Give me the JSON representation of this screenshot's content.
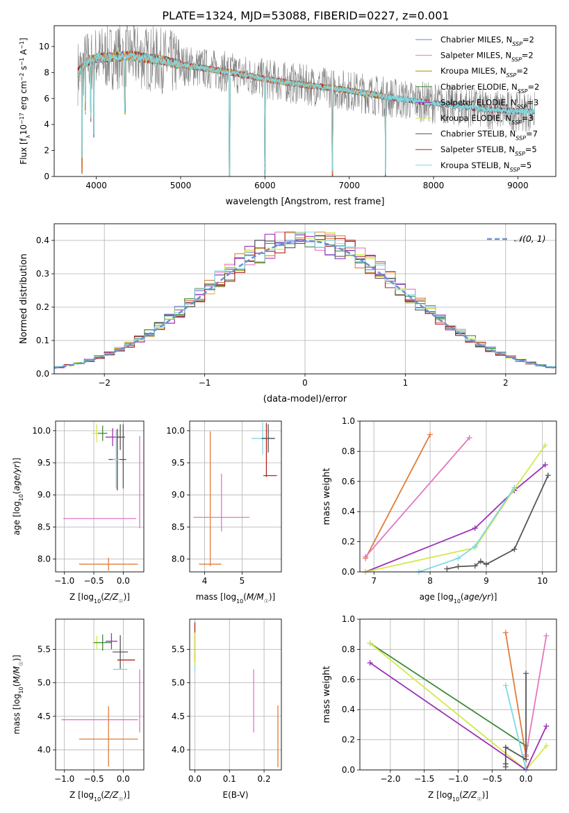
{
  "figure": {
    "title": "PLATE=1324, MJD=53088, FIBERID=0227, z=0.001"
  },
  "colors": {
    "chabrier_miles": "#6b7fd6",
    "salpeter_miles": "#e377c2",
    "kroupa_miles": "#b8860b",
    "chabrier_elodie": "#3a8a3a",
    "salpeter_elodie": "#9b30b8",
    "kroupa_elodie": "#d4e84a",
    "chabrier_stelib": "#555555",
    "salpeter_stelib": "#b22222",
    "kroupa_stelib": "#7fd8e0",
    "data_spectrum": "#808080",
    "orange": "#e07b39",
    "gaussian": "#6a8fd8",
    "grid": "#b0b0b0"
  },
  "chart_data": [
    {
      "id": "spectrum",
      "type": "line",
      "xlabel": "wavelength [Angstrom, rest frame]",
      "ylabel": "Flux [f_λ10^-17 erg cm^-2 s^-1 A^-1]",
      "xlim": [
        3500,
        9450
      ],
      "ylim": [
        0,
        11.6
      ],
      "xticks": [
        4000,
        5000,
        6000,
        7000,
        8000,
        9000
      ],
      "yticks": [
        0,
        2,
        4,
        6,
        8,
        10
      ],
      "grid": false,
      "legend_position": "top-right",
      "legend": [
        {
          "label": "Chabrier MILES, N",
          "sub": "SSP",
          "suffix": "=2",
          "color_key": "chabrier_miles"
        },
        {
          "label": "Salpeter MILES, N",
          "sub": "SSP",
          "suffix": "=2",
          "color_key": "salpeter_miles"
        },
        {
          "label": "Kroupa MILES, N",
          "sub": "SSP",
          "suffix": "=2",
          "color_key": "kroupa_miles"
        },
        {
          "label": "Chabrier ELODIE, N",
          "sub": "SSP",
          "suffix": "=2",
          "color_key": "chabrier_elodie"
        },
        {
          "label": "Salpeter ELODIE, N",
          "sub": "SSP",
          "suffix": "=3",
          "color_key": "salpeter_elodie"
        },
        {
          "label": "Kroupa ELODIE, N",
          "sub": "SSP",
          "suffix": "=3",
          "color_key": "kroupa_elodie"
        },
        {
          "label": "Chabrier STELIB, N",
          "sub": "SSP",
          "suffix": "=7",
          "color_key": "chabrier_stelib"
        },
        {
          "label": "Salpeter STELIB, N",
          "sub": "SSP",
          "suffix": "=5",
          "color_key": "salpeter_stelib"
        },
        {
          "label": "Kroupa STELIB, N",
          "sub": "SSP",
          "suffix": "=5",
          "color_key": "kroupa_stelib"
        }
      ],
      "continuum": {
        "x": [
          3780,
          3900,
          4000,
          4200,
          4400,
          4600,
          4800,
          5000,
          5300,
          5600,
          6000,
          6400,
          6800,
          7200,
          7450,
          7800,
          8200,
          8600,
          9000,
          9200
        ],
        "y": [
          8.0,
          8.9,
          9.1,
          9.2,
          9.3,
          9.1,
          8.9,
          8.6,
          8.3,
          8.0,
          7.5,
          7.1,
          6.8,
          6.4,
          6.1,
          5.8,
          5.5,
          5.2,
          5.0,
          5.0
        ]
      },
      "model_end": {
        "miles_elodie": 7430,
        "stelib": 9200
      },
      "absorption_dips": [
        {
          "x": 3830,
          "y": 0.2
        },
        {
          "x": 3870,
          "y": 4.8
        },
        {
          "x": 3935,
          "y": 4.2
        },
        {
          "x": 3970,
          "y": 3.0
        },
        {
          "x": 4340,
          "y": 4.8
        },
        {
          "x": 5580,
          "y": 0.0
        },
        {
          "x": 6000,
          "y": 0.0
        },
        {
          "x": 6800,
          "y": 0.0
        },
        {
          "x": 7430,
          "y": 0.0
        }
      ]
    },
    {
      "id": "residuals",
      "type": "histogram",
      "xlabel": "(data-model)/error",
      "ylabel": "Normed distribution",
      "xlim": [
        -2.5,
        2.5
      ],
      "ylim": [
        0,
        0.45
      ],
      "xticks": [
        -2,
        -1,
        0,
        1,
        2
      ],
      "yticks": [
        0.0,
        0.1,
        0.2,
        0.3,
        0.4
      ],
      "grid": true,
      "legend_position": "top-right",
      "legend": [
        {
          "label": "𝒩(0, 1)",
          "style": "dashed",
          "color_key": "gaussian"
        }
      ],
      "gaussian": {
        "mean": 0,
        "sigma": 1
      },
      "bin_width": 0.1,
      "series_count": 9
    },
    {
      "id": "age_vs_Z",
      "type": "errorbar",
      "xlabel": "Z [log10(Z/Z☉)]",
      "ylabel": "age  [log10(age/yr)]",
      "xlim": [
        -1.15,
        0.35
      ],
      "ylim": [
        7.8,
        10.15
      ],
      "xticks": [
        -1.0,
        -0.5,
        0.0
      ],
      "yticks": [
        8.0,
        8.5,
        9.0,
        9.5,
        10.0
      ],
      "grid": true,
      "points": [
        {
          "x": -0.25,
          "y": 7.92,
          "xerr": 0.5,
          "yerr": 0.1,
          "color_key": "orange"
        },
        {
          "x": -0.4,
          "y": 8.63,
          "xerr": 0.62,
          "yerr": 0.0,
          "color_key": "salpeter_miles"
        },
        {
          "x": 0.28,
          "y": 9.2,
          "xerr": 0.0,
          "yerr": 0.72,
          "color_key": "salpeter_miles"
        },
        {
          "x": -0.45,
          "y": 9.96,
          "xerr": 0.08,
          "yerr": 0.14,
          "color_key": "kroupa_elodie"
        },
        {
          "x": -0.35,
          "y": 9.96,
          "xerr": 0.08,
          "yerr": 0.12,
          "color_key": "chabrier_elodie"
        },
        {
          "x": -0.18,
          "y": 9.9,
          "xerr": 0.12,
          "yerr": 0.14,
          "color_key": "salpeter_elodie"
        },
        {
          "x": -0.05,
          "y": 9.9,
          "xerr": 0.08,
          "yerr": 0.2,
          "color_key": "chabrier_stelib"
        },
        {
          "x": -0.1,
          "y": 9.55,
          "xerr": 0.15,
          "yerr": 0.48,
          "color_key": "salpeter_stelib"
        },
        {
          "x": -0.12,
          "y": 9.55,
          "xerr": 0.06,
          "yerr": 0.45,
          "color_key": "kroupa_stelib"
        },
        {
          "x": 0.0,
          "y": 9.6,
          "xerr": 0.0,
          "yerr": 0.5,
          "color_key": "chabrier_stelib"
        }
      ]
    },
    {
      "id": "age_vs_mass",
      "type": "errorbar",
      "xlabel": "mass [log10(M/M☉)]",
      "ylabel": "",
      "xlim": [
        3.6,
        6.05
      ],
      "ylim": [
        7.8,
        10.15
      ],
      "xticks": [
        4,
        5
      ],
      "yticks": [
        8.0,
        8.5,
        9.0,
        9.5,
        10.0
      ],
      "grid": true,
      "points": [
        {
          "x": 4.15,
          "y": 8.94,
          "xerr": 0.0,
          "yerr": 1.05,
          "color_key": "orange"
        },
        {
          "x": 4.15,
          "y": 7.92,
          "xerr": 0.3,
          "yerr": 0.0,
          "color_key": "orange"
        },
        {
          "x": 4.45,
          "y": 8.65,
          "xerr": 0.75,
          "yerr": 0.0,
          "color_key": "salpeter_miles"
        },
        {
          "x": 4.45,
          "y": 8.88,
          "xerr": 0.0,
          "yerr": 0.45,
          "color_key": "salpeter_miles"
        },
        {
          "x": 5.55,
          "y": 9.88,
          "xerr": 0.3,
          "yerr": 0.25,
          "color_key": "kroupa_stelib"
        },
        {
          "x": 5.65,
          "y": 9.7,
          "xerr": 0.0,
          "yerr": 0.42,
          "color_key": "salpeter_stelib"
        },
        {
          "x": 5.7,
          "y": 9.88,
          "xerr": 0.18,
          "yerr": 0.22,
          "color_key": "chabrier_stelib"
        },
        {
          "x": 5.75,
          "y": 9.3,
          "xerr": 0.18,
          "yerr": 0.0,
          "color_key": "salpeter_stelib"
        }
      ]
    },
    {
      "id": "mw_vs_age",
      "type": "line",
      "xlabel": "age  [log10(age/yr)]",
      "ylabel": "mass weight",
      "xlim": [
        6.75,
        10.25
      ],
      "ylim": [
        0,
        1.0
      ],
      "xticks": [
        7,
        8,
        9,
        10
      ],
      "yticks": [
        0.0,
        0.2,
        0.4,
        0.6,
        0.8,
        1.0
      ],
      "grid": true,
      "series": [
        {
          "color_key": "orange",
          "x": [
            6.85,
            8.0
          ],
          "y": [
            0.09,
            0.91
          ]
        },
        {
          "color_key": "salpeter_miles",
          "x": [
            6.85,
            8.7
          ],
          "y": [
            0.1,
            0.89
          ]
        },
        {
          "color_key": "salpeter_elodie",
          "x": [
            6.85,
            8.8,
            9.5,
            10.05
          ],
          "y": [
            0.0,
            0.29,
            0.54,
            0.71
          ]
        },
        {
          "color_key": "kroupa_elodie",
          "x": [
            6.85,
            8.8,
            9.5,
            10.05
          ],
          "y": [
            0.0,
            0.16,
            0.55,
            0.84
          ]
        },
        {
          "color_key": "kroupa_stelib",
          "x": [
            7.8,
            8.5,
            8.8,
            9.5
          ],
          "y": [
            0.0,
            0.09,
            0.17,
            0.56
          ]
        },
        {
          "color_key": "chabrier_stelib",
          "x": [
            8.3,
            8.5,
            8.8,
            8.9,
            9.0,
            9.5,
            10.1
          ],
          "y": [
            0.02,
            0.035,
            0.04,
            0.07,
            0.05,
            0.15,
            0.64
          ]
        }
      ]
    },
    {
      "id": "mass_vs_Z",
      "type": "errorbar",
      "xlabel": "Z [log10(Z/Z☉)]",
      "ylabel": "mass [log10(M/M☉)]",
      "xlim": [
        -1.15,
        0.35
      ],
      "ylim": [
        3.7,
        5.95
      ],
      "xticks": [
        -1.0,
        -0.5,
        0.0
      ],
      "yticks": [
        4.0,
        4.5,
        5.0,
        5.5
      ],
      "grid": true,
      "points": [
        {
          "x": -0.25,
          "y": 4.16,
          "xerr": 0.5,
          "yerr": 0.0,
          "color_key": "orange"
        },
        {
          "x": -0.25,
          "y": 4.2,
          "xerr": 0.0,
          "yerr": 0.45,
          "color_key": "orange"
        },
        {
          "x": -0.4,
          "y": 4.45,
          "xerr": 0.65,
          "yerr": 0.0,
          "color_key": "salpeter_miles"
        },
        {
          "x": 0.28,
          "y": 4.73,
          "xerr": 0.0,
          "yerr": 0.47,
          "color_key": "salpeter_miles"
        },
        {
          "x": -0.45,
          "y": 5.6,
          "xerr": 0.08,
          "yerr": 0.1,
          "color_key": "kroupa_elodie"
        },
        {
          "x": -0.35,
          "y": 5.6,
          "xerr": 0.15,
          "yerr": 0.12,
          "color_key": "chabrier_elodie"
        },
        {
          "x": -0.2,
          "y": 5.62,
          "xerr": 0.1,
          "yerr": 0.12,
          "color_key": "salpeter_elodie"
        },
        {
          "x": -0.05,
          "y": 5.46,
          "xerr": 0.13,
          "yerr": 0.25,
          "color_key": "chabrier_stelib"
        },
        {
          "x": 0.05,
          "y": 5.34,
          "xerr": 0.15,
          "yerr": 0.0,
          "color_key": "salpeter_stelib"
        },
        {
          "x": -0.05,
          "y": 5.2,
          "xerr": 0.12,
          "yerr": 0.0,
          "color_key": "kroupa_stelib"
        }
      ]
    },
    {
      "id": "mass_vs_ebv",
      "type": "errorbar",
      "xlabel": "E(B-V)",
      "ylabel": "",
      "xlim": [
        -0.015,
        0.25
      ],
      "ylim": [
        3.7,
        5.95
      ],
      "xticks": [
        0.0,
        0.1,
        0.2
      ],
      "yticks": [
        4.0,
        4.5,
        5.0,
        5.5
      ],
      "grid": true,
      "points": [
        {
          "x": 0.0,
          "y": 5.55,
          "xerr": 0.0,
          "yerr": 0.38,
          "color_key": "kroupa_stelib"
        },
        {
          "x": 0.0,
          "y": 5.6,
          "xerr": 0.0,
          "yerr": 0.3,
          "color_key": "salpeter_stelib"
        },
        {
          "x": 0.0,
          "y": 5.5,
          "xerr": 0.0,
          "yerr": 0.25,
          "color_key": "kroupa_elodie"
        },
        {
          "x": 0.17,
          "y": 4.73,
          "xerr": 0.0,
          "yerr": 0.47,
          "color_key": "salpeter_miles"
        },
        {
          "x": 0.24,
          "y": 4.2,
          "xerr": 0.0,
          "yerr": 0.46,
          "color_key": "orange"
        }
      ]
    },
    {
      "id": "mw_vs_Z",
      "type": "line",
      "xlabel": "Z [log10(Z/Z☉)]",
      "ylabel": "mass weight",
      "xlim": [
        -2.45,
        0.45
      ],
      "ylim": [
        0,
        1.0
      ],
      "xticks": [
        -2.0,
        -1.5,
        -1.0,
        -0.5,
        0.0
      ],
      "yticks": [
        0.0,
        0.2,
        0.4,
        0.6,
        0.8,
        1.0
      ],
      "grid": true,
      "series": [
        {
          "color_key": "chabrier_elodie",
          "x": [
            -2.3,
            0.0
          ],
          "y": [
            0.84,
            0.16
          ]
        },
        {
          "color_key": "kroupa_elodie",
          "x": [
            -2.3,
            0.0,
            0.3
          ],
          "y": [
            0.84,
            0.0,
            0.16
          ]
        },
        {
          "color_key": "salpeter_elodie",
          "x": [
            -2.3,
            0.0,
            0.3
          ],
          "y": [
            0.71,
            0.0,
            0.29
          ]
        },
        {
          "color_key": "orange",
          "x": [
            -0.3,
            0.0
          ],
          "y": [
            0.91,
            0.09
          ]
        },
        {
          "color_key": "salpeter_miles",
          "x": [
            0.0,
            0.3
          ],
          "y": [
            0.1,
            0.89
          ]
        },
        {
          "color_key": "kroupa_stelib",
          "x": [
            -0.3,
            0.0
          ],
          "y": [
            0.56,
            0.0
          ]
        },
        {
          "color_key": "chabrier_stelib",
          "x": [
            -0.3,
            -0.3,
            -0.3,
            0.0,
            0.0
          ],
          "y": [
            0.02,
            0.04,
            0.15,
            0.07,
            0.64
          ]
        }
      ]
    }
  ]
}
